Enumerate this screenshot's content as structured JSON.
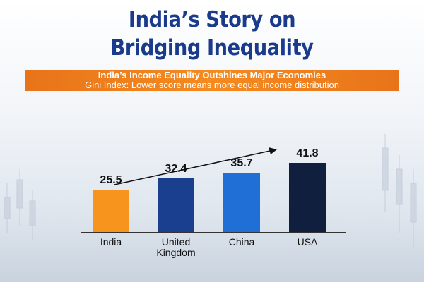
{
  "chart_data": {
    "type": "bar",
    "title": "India’s Story on Bridging Inequality",
    "subtitle": "India’s Income Equality Outshines Major Economies",
    "note": "Gini Index: Lower score means more equal income distribution",
    "categories": [
      "India",
      "United Kingdom",
      "China",
      "USA"
    ],
    "values": [
      25.5,
      32.4,
      35.7,
      41.8
    ],
    "colors": [
      "#f7941d",
      "#1b3f8f",
      "#1f6fd6",
      "#0f1f3d"
    ]
  }
}
